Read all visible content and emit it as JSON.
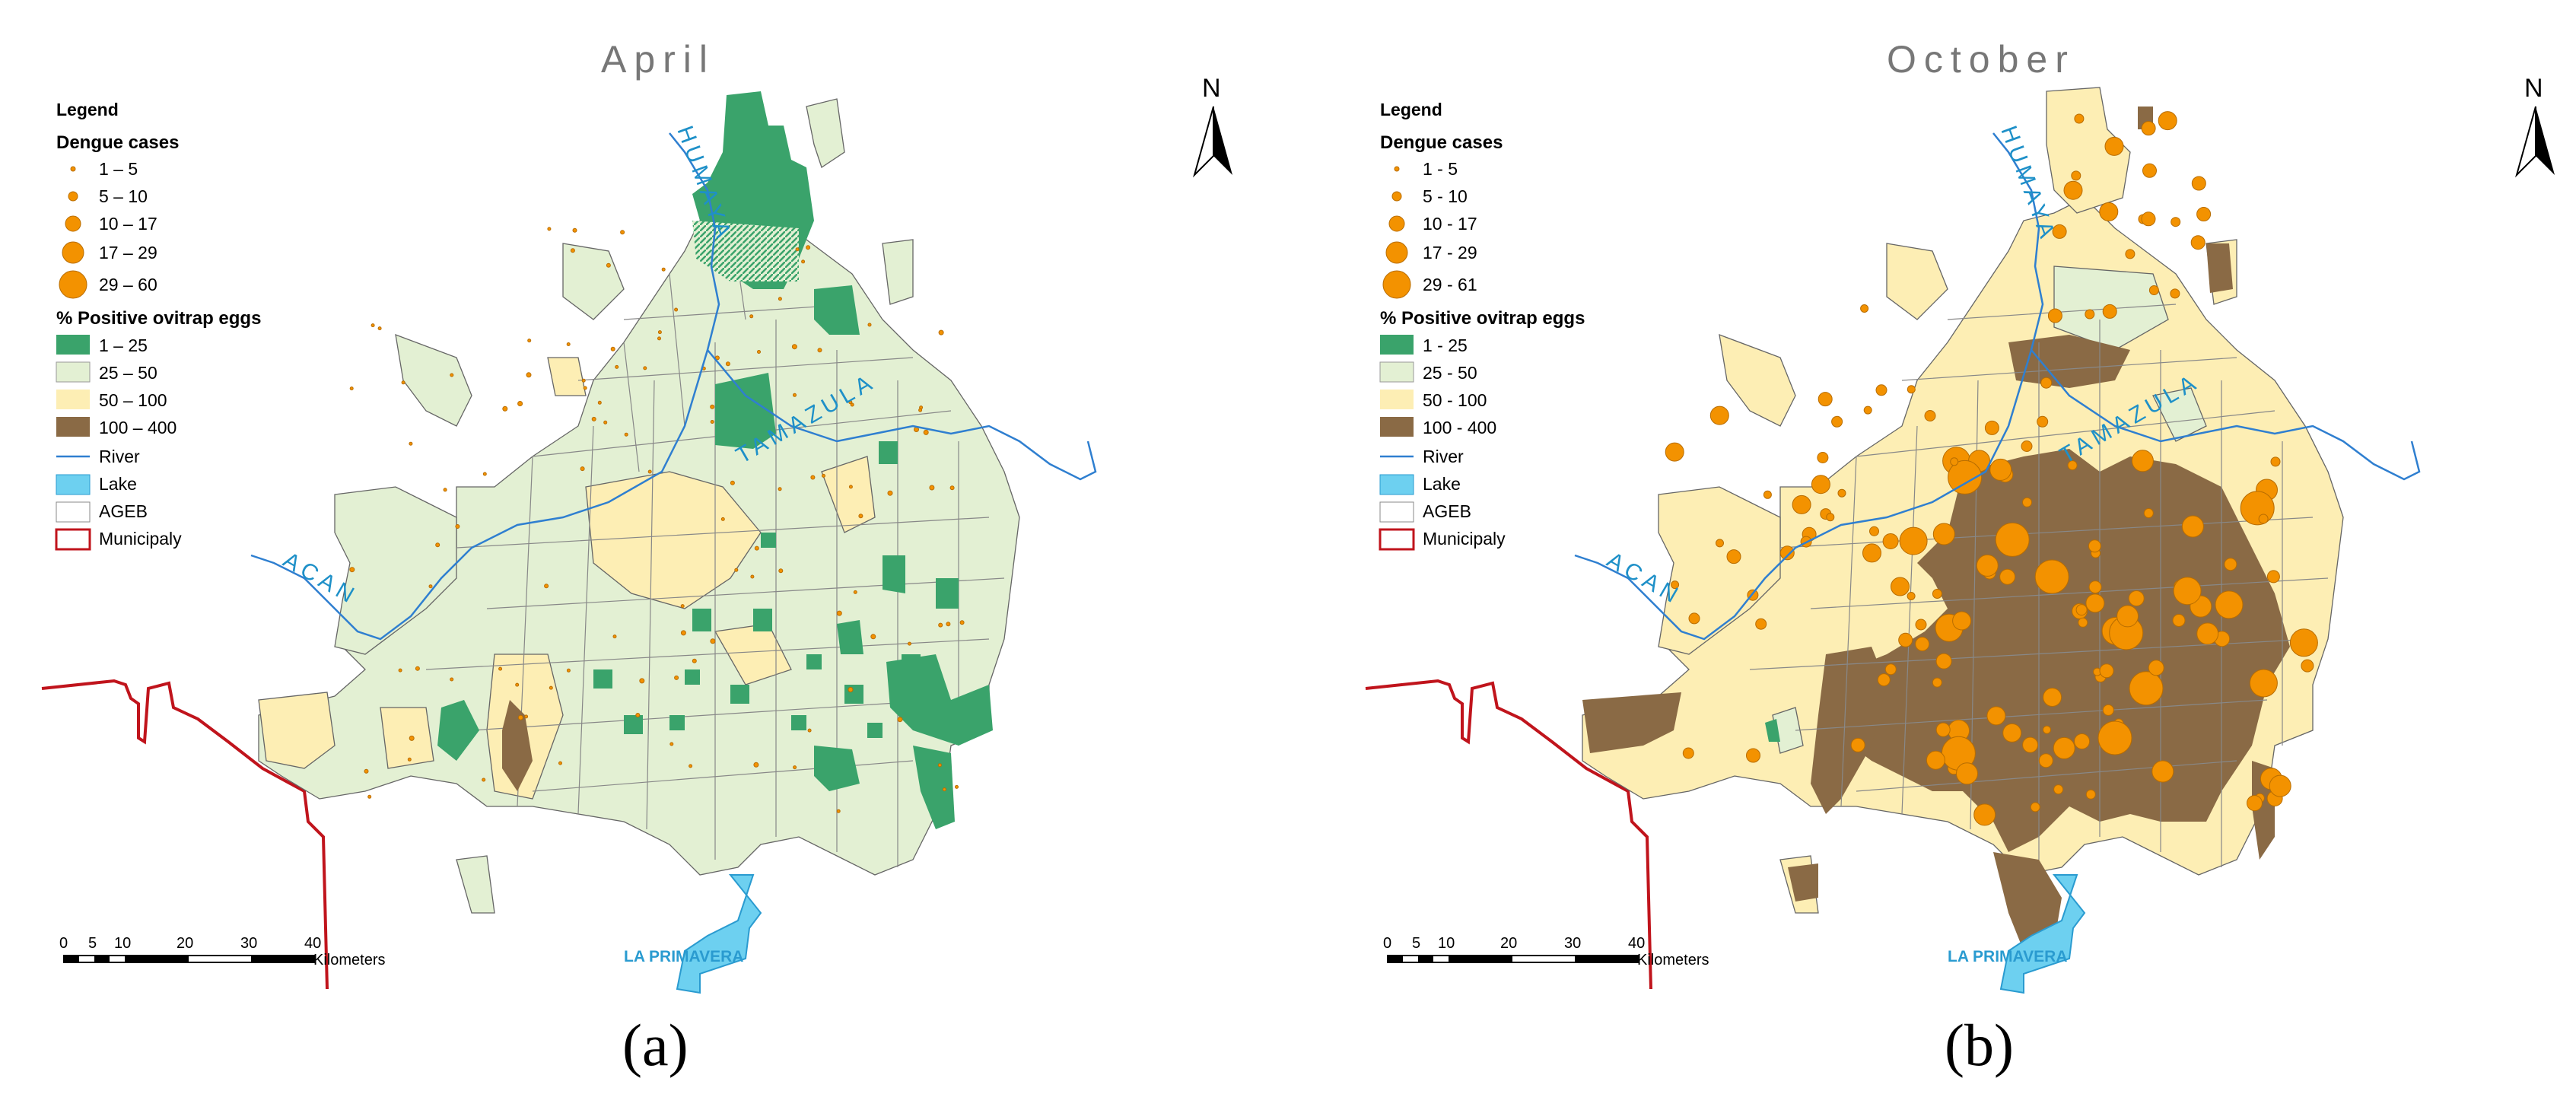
{
  "maps": [
    {
      "title": "April",
      "caption": "(a)",
      "legend": {
        "title": "Legend",
        "dengue_heading": "Dengue cases",
        "dengue_classes": [
          "1 – 5",
          "5 – 10",
          "10 – 17",
          "17 – 29",
          "29 – 60"
        ],
        "ovitrap_heading": "% Positive ovitrap eggs",
        "ovitrap_classes": [
          "1 – 25",
          "25 – 50",
          "50 – 100",
          "100 – 400"
        ],
        "other_items": [
          "River",
          "Lake",
          "AGEB",
          "Municipaly"
        ]
      },
      "rivers": [
        "HUMAYA",
        "TAMAZULA",
        "ACAN"
      ],
      "lake": "LA PRIMAVERA",
      "north": "N",
      "scale": {
        "ticks": [
          "0",
          "5",
          "10",
          "20",
          "30",
          "40"
        ],
        "unit": "Kilometers"
      }
    },
    {
      "title": "October",
      "caption": "(b)",
      "legend": {
        "title": "Legend",
        "dengue_heading": "Dengue cases",
        "dengue_classes": [
          "1 - 5",
          "5 - 10",
          "10 - 17",
          "17 - 29",
          "29 - 61"
        ],
        "ovitrap_heading": "% Positive ovitrap eggs",
        "ovitrap_classes": [
          "1 - 25",
          "25 - 50",
          "50 - 100",
          "100 - 400"
        ],
        "other_items": [
          "River",
          "Lake",
          "AGEB",
          "Municipaly"
        ]
      },
      "rivers": [
        "HUMAYA",
        "TAMAZULA",
        "ACAN"
      ],
      "lake": "LA PRIMAVERA",
      "north": "N",
      "scale": {
        "ticks": [
          "0",
          "5",
          "10",
          "20",
          "30",
          "40"
        ],
        "unit": "Kilometers"
      }
    }
  ],
  "colors": {
    "ovitrap_1_25": "#3aa36b",
    "ovitrap_25_50": "#e3f0d3",
    "ovitrap_50_100": "#fdeeb4",
    "ovitrap_100_400": "#8a6a45",
    "dengue_dot": "#f39200",
    "river": "#2f7fd0",
    "lake": "#6dd0f0",
    "municipality": "#c0141c",
    "ageb_outline": "#666666"
  }
}
